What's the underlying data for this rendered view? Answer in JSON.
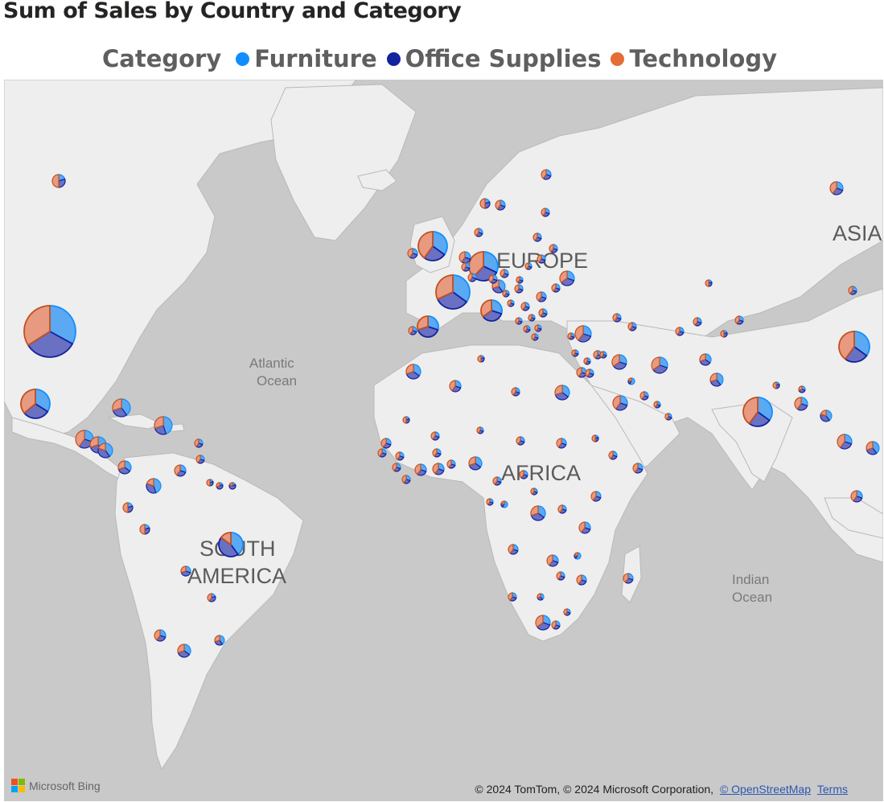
{
  "title": "Sum of Sales by Country and Category",
  "legend": {
    "title": "Category",
    "items": [
      {
        "label": "Furniture",
        "color": "#118dff"
      },
      {
        "label": "Office Supplies",
        "color": "#12239e"
      },
      {
        "label": "Technology",
        "color": "#e66c37"
      }
    ]
  },
  "map": {
    "region_labels": [
      "EUROPE",
      "ASIA",
      "AFRICA",
      "SOUTH AMERICA"
    ],
    "ocean_labels": [
      "Atlantic Ocean",
      "Indian Ocean"
    ],
    "attribution": "© 2024 TomTom, © 2024 Microsoft Corporation,",
    "osm_link": "© OpenStreetMap",
    "terms_link": "Terms",
    "brand": "Microsoft Bing"
  },
  "colors": {
    "furniture_fill": "#5aa9f2",
    "office_fill": "#6a70c2",
    "technology_fill": "#e89a80",
    "furniture_stroke": "#118dff",
    "office_stroke": "#12239e",
    "technology_stroke": "#c2501d",
    "land": "#f0f0f0",
    "water": "#c9c9c9"
  }
}
